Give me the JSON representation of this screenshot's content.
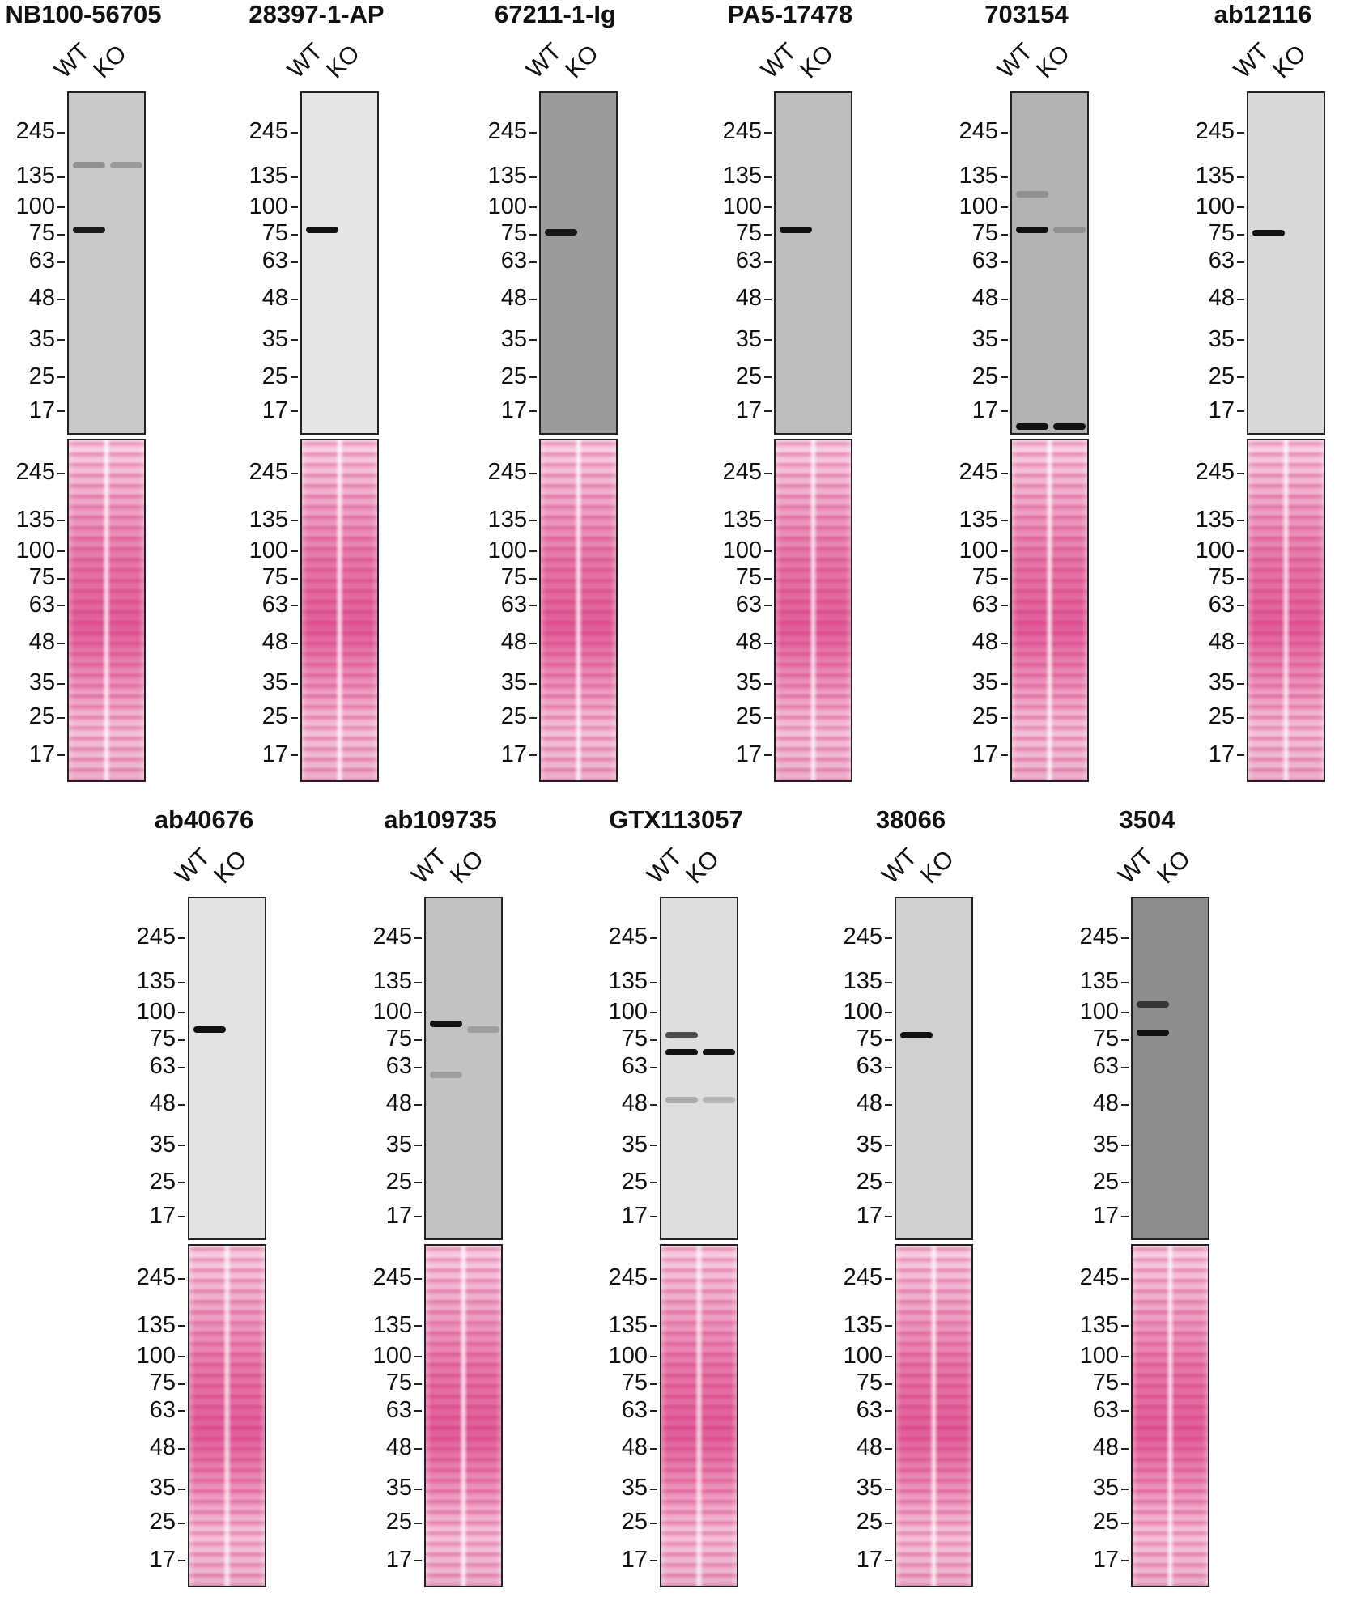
{
  "lane_labels": [
    "WT",
    "KO"
  ],
  "markers": [
    "245",
    "135",
    "100",
    "75",
    "63",
    "48",
    "35",
    "25",
    "17"
  ],
  "marker_values": [
    245,
    135,
    100,
    75,
    63,
    48,
    35,
    25,
    17
  ],
  "colors": {
    "ponceau_stain": "#e0619a",
    "band": "#111111",
    "frame": "#222222"
  },
  "panels": [
    {
      "antibody": "NB100-56705",
      "row": 1,
      "background": "#c9c9c9",
      "bands": [
        {
          "lane": "WT",
          "mw": 80,
          "intensity": 0.95
        },
        {
          "lane": "WT",
          "mw": 160,
          "intensity": 0.3
        },
        {
          "lane": "KO",
          "mw": 160,
          "intensity": 0.25
        }
      ]
    },
    {
      "antibody": "28397-1-AP",
      "row": 1,
      "background": "#e6e6e6",
      "bands": [
        {
          "lane": "WT",
          "mw": 80,
          "intensity": 1.0
        }
      ]
    },
    {
      "antibody": "67211-1-Ig",
      "row": 1,
      "background": "#9b9b9b",
      "bands": [
        {
          "lane": "WT",
          "mw": 78,
          "intensity": 0.95
        }
      ]
    },
    {
      "antibody": "PA5-17478",
      "row": 1,
      "background": "#bdbdbd",
      "bands": [
        {
          "lane": "WT",
          "mw": 80,
          "intensity": 1.0
        }
      ]
    },
    {
      "antibody": "703154",
      "row": 1,
      "background": "#b2b2b2",
      "bands": [
        {
          "lane": "WT",
          "mw": 80,
          "intensity": 1.0
        },
        {
          "lane": "KO",
          "mw": 80,
          "intensity": 0.2
        },
        {
          "lane": "WT",
          "mw": 115,
          "intensity": 0.2
        },
        {
          "lane": "WT",
          "mw": 14,
          "intensity": 1.0
        },
        {
          "lane": "KO",
          "mw": 14,
          "intensity": 1.0
        }
      ]
    },
    {
      "antibody": "ab12116",
      "row": 1,
      "background": "#d9d9d9",
      "bands": [
        {
          "lane": "WT",
          "mw": 77,
          "intensity": 1.0
        }
      ]
    },
    {
      "antibody": "ab40676",
      "row": 2,
      "background": "#e3e3e3",
      "bands": [
        {
          "lane": "WT",
          "mw": 85,
          "intensity": 1.0
        }
      ]
    },
    {
      "antibody": "ab109735",
      "row": 2,
      "background": "#c2c2c2",
      "bands": [
        {
          "lane": "WT",
          "mw": 90,
          "intensity": 1.0
        },
        {
          "lane": "KO",
          "mw": 85,
          "intensity": 0.2
        },
        {
          "lane": "WT",
          "mw": 60,
          "intensity": 0.2
        }
      ]
    },
    {
      "antibody": "GTX113057",
      "row": 2,
      "background": "#dedede",
      "bands": [
        {
          "lane": "WT",
          "mw": 80,
          "intensity": 0.7
        },
        {
          "lane": "WT",
          "mw": 70,
          "intensity": 1.0
        },
        {
          "lane": "KO",
          "mw": 70,
          "intensity": 1.0
        },
        {
          "lane": "WT",
          "mw": 50,
          "intensity": 0.25
        },
        {
          "lane": "KO",
          "mw": 50,
          "intensity": 0.2
        }
      ]
    },
    {
      "antibody": "38066",
      "row": 2,
      "background": "#d0d0d0",
      "bands": [
        {
          "lane": "WT",
          "mw": 80,
          "intensity": 1.0
        }
      ]
    },
    {
      "antibody": "3504",
      "row": 2,
      "background": "#8e8e8e",
      "bands": [
        {
          "lane": "WT",
          "mw": 110,
          "intensity": 0.7
        },
        {
          "lane": "WT",
          "mw": 82,
          "intensity": 1.0
        }
      ]
    }
  ]
}
